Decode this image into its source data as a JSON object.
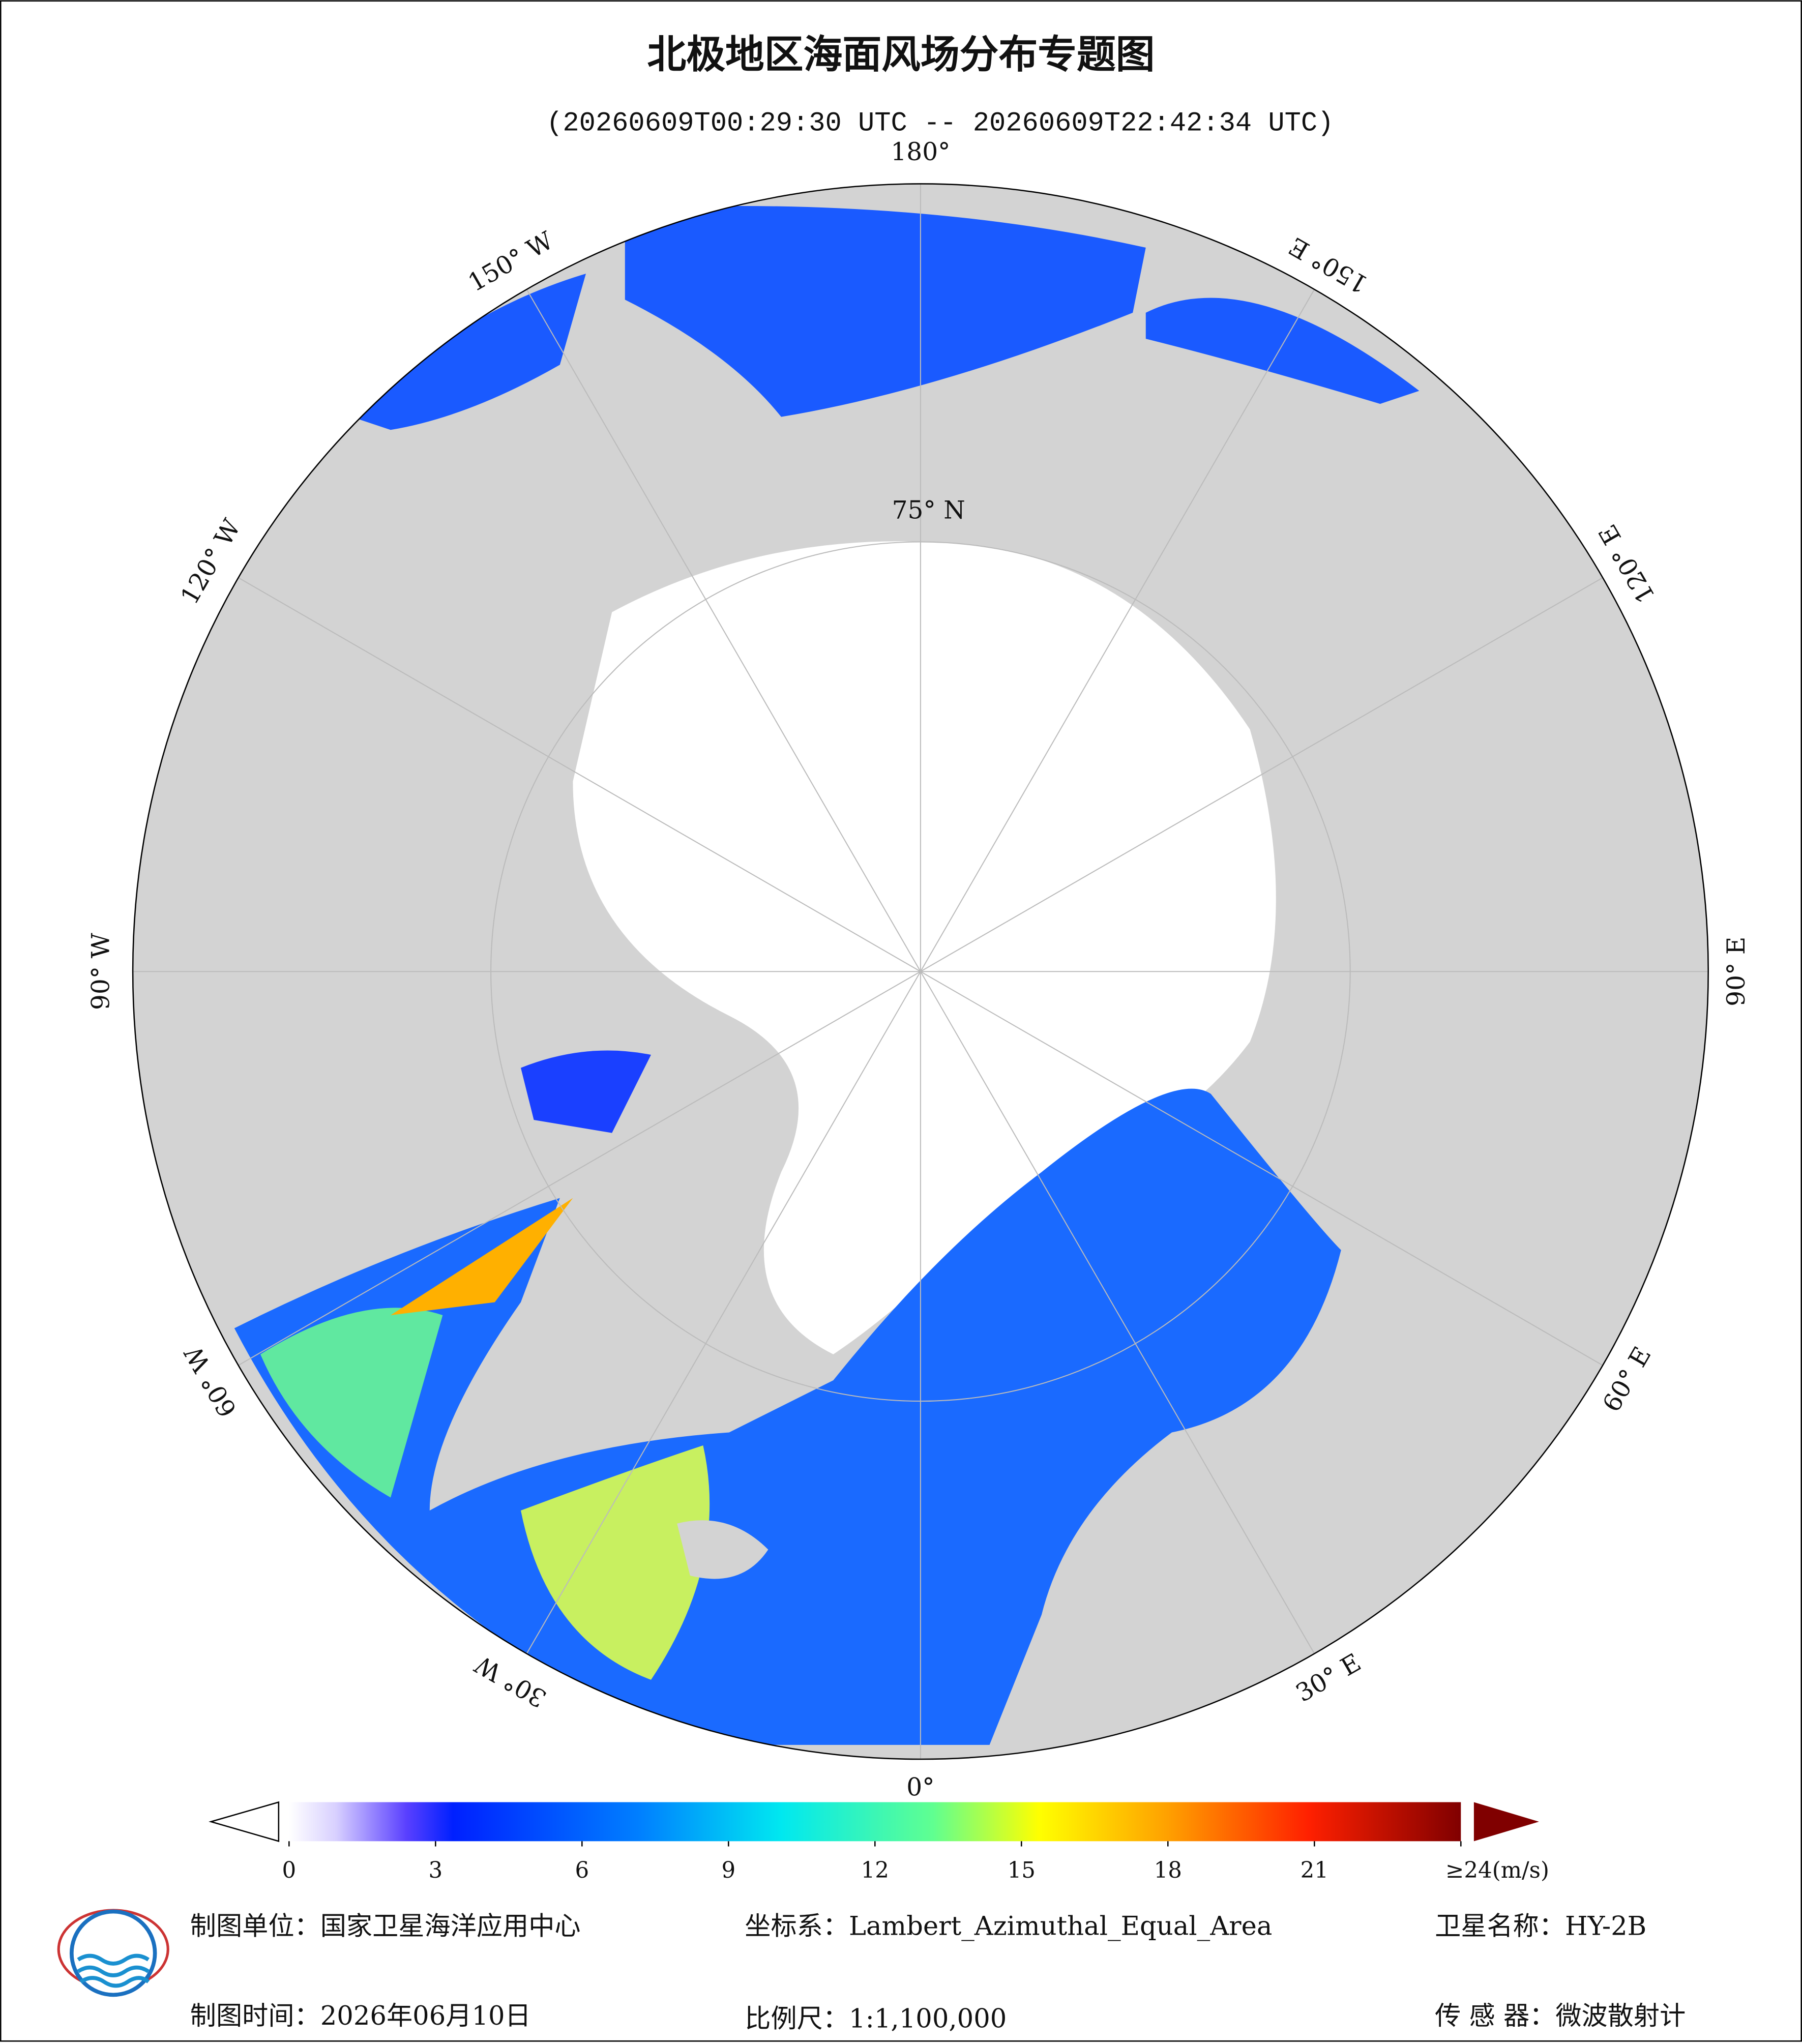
{
  "header": {
    "title": "北极地区海面风场分布专题图",
    "subtitle": "(20260609T00:29:30 UTC -- 20260609T22:42:34 UTC)"
  },
  "map": {
    "longitude_labels": [
      "0°",
      "30° E",
      "60° E",
      "90° E",
      "120° E",
      "150° E",
      "180°",
      "150° W",
      "120° W",
      "90° W",
      "60° W",
      "30° W"
    ],
    "latitude_label": "75° N"
  },
  "colorbar": {
    "lim": [
      0,
      24
    ],
    "ticks": [
      0,
      3,
      6,
      9,
      12,
      15,
      18,
      21,
      {
        "value": 24,
        "label": "≥24(m/s)"
      }
    ]
  },
  "footer": {
    "unit": "制图单位：国家卫星海洋应用中心",
    "crs": "坐标系：Lambert_Azimuthal_Equal_Area",
    "satellite": "卫星名称：HY-2B",
    "date": "制图时间：2026年06月10日",
    "scale": "比例尺：1:1,100,000",
    "sensor": "传 感 器：微波散射计"
  }
}
